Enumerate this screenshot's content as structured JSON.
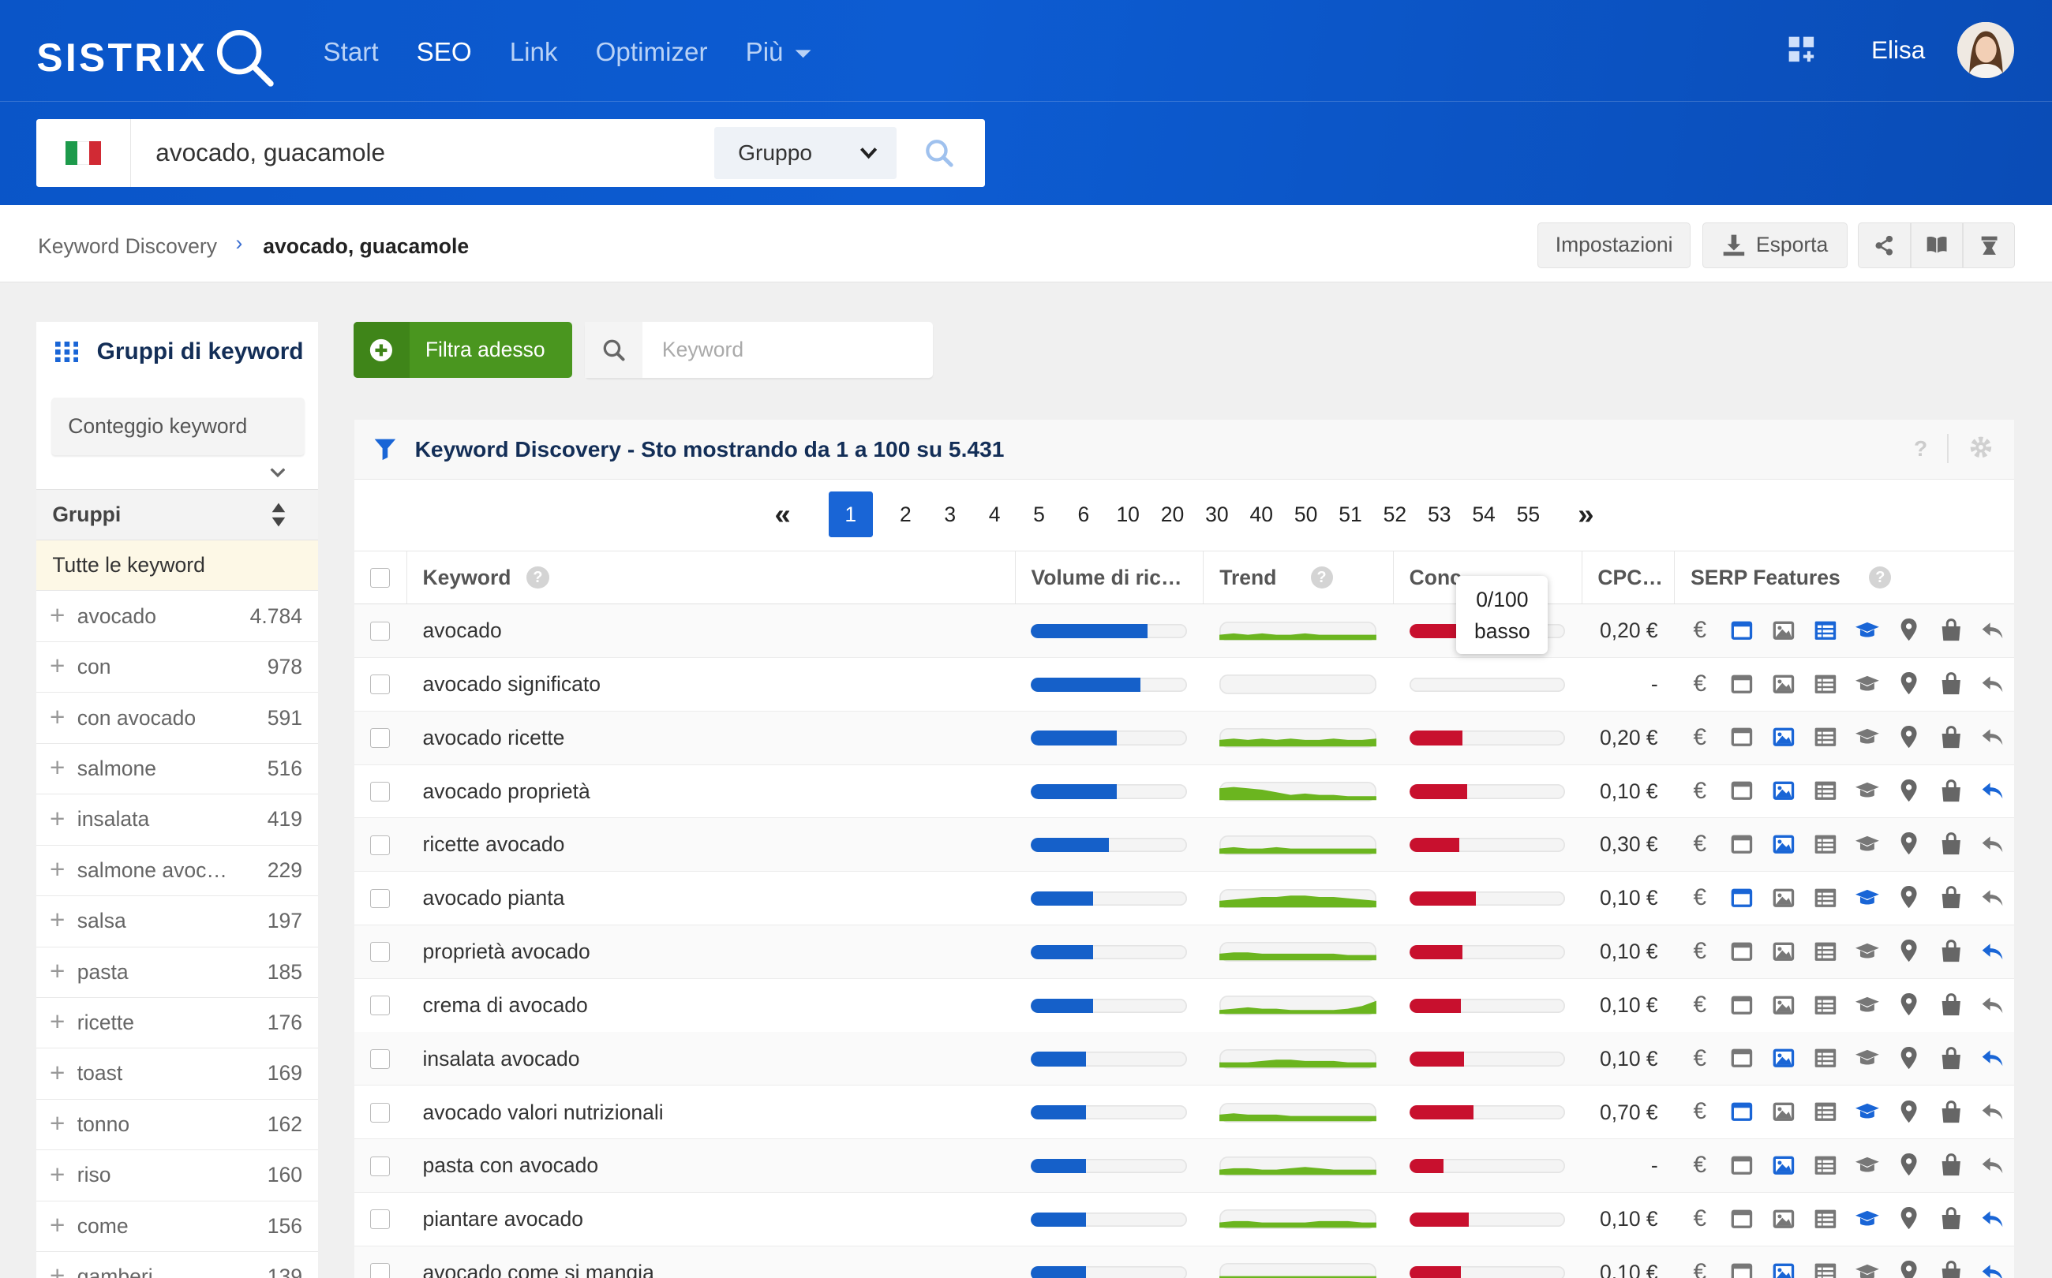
{
  "header": {
    "logo": "SISTRIX",
    "nav": [
      {
        "label": "Start",
        "active": false
      },
      {
        "label": "SEO",
        "active": true
      },
      {
        "label": "Link",
        "active": false
      },
      {
        "label": "Optimizer",
        "active": false
      },
      {
        "label": "Più",
        "active": false
      }
    ],
    "user_name": "Elisa",
    "colors": {
      "brand": "#0d5cd2",
      "accent_green": "#4a961f",
      "bar_blue": "#1560c9",
      "bar_red": "#c8102e",
      "trend_green": "#6bb51f"
    }
  },
  "search": {
    "value": "avocado, guacamole",
    "country_flag": "IT",
    "mode_label": "Gruppo"
  },
  "breadcrumb": {
    "root": "Keyword Discovery",
    "current": "avocado, guacamole"
  },
  "toolbar": {
    "settings_label": "Impostazioni",
    "export_label": "Esporta"
  },
  "sidebar": {
    "title": "Gruppi di keyword",
    "count_button": "Conteggio keyword",
    "groups_header": "Gruppi",
    "all_label": "Tutte le keyword",
    "groups": [
      {
        "name": "avocado",
        "count": "4.784"
      },
      {
        "name": "con",
        "count": "978"
      },
      {
        "name": "con avocado",
        "count": "591"
      },
      {
        "name": "salmone",
        "count": "516"
      },
      {
        "name": "insalata",
        "count": "419"
      },
      {
        "name": "salmone avoc…",
        "count": "229"
      },
      {
        "name": "salsa",
        "count": "197"
      },
      {
        "name": "pasta",
        "count": "185"
      },
      {
        "name": "ricette",
        "count": "176"
      },
      {
        "name": "toast",
        "count": "169"
      },
      {
        "name": "tonno",
        "count": "162"
      },
      {
        "name": "riso",
        "count": "160"
      },
      {
        "name": "come",
        "count": "156"
      },
      {
        "name": "gamberi",
        "count": "139"
      }
    ]
  },
  "filter": {
    "button_label": "Filtra adesso",
    "keyword_placeholder": "Keyword"
  },
  "table": {
    "title": "Keyword Discovery - Sto mostrando da 1 a 100 su 5.431",
    "pages": [
      "1",
      "2",
      "3",
      "4",
      "5",
      "6",
      "10",
      "20",
      "30",
      "40",
      "50",
      "51",
      "52",
      "53",
      "54",
      "55"
    ],
    "current_page": "1",
    "columns": {
      "keyword": "Keyword",
      "volume": "Volume di ric…",
      "trend": "Trend",
      "competition": "Conc",
      "cpc": "CPC…",
      "serp": "SERP Features"
    },
    "tooltip": {
      "line1": "0/100",
      "line2": "basso"
    },
    "rows": [
      {
        "keyword": "avocado",
        "volume": 0.75,
        "competition": 0.3,
        "cpc": "0,20 €",
        "trend": [
          4,
          5,
          4,
          5,
          4,
          4,
          5,
          4,
          4,
          4,
          4,
          4
        ],
        "serp_active": [
          1,
          0,
          1,
          1,
          0,
          0,
          0,
          0
        ]
      },
      {
        "keyword": "avocado significato",
        "volume": 0.7,
        "competition": 0,
        "cpc": "-",
        "trend": [],
        "serp_active": [
          0,
          0,
          0,
          0,
          0,
          0,
          0,
          0
        ]
      },
      {
        "keyword": "avocado ricette",
        "volume": 0.55,
        "competition": 0.34,
        "cpc": "0,20 €",
        "trend": [
          5,
          6,
          5,
          6,
          5,
          6,
          5,
          5,
          6,
          5,
          5,
          6
        ],
        "serp_active": [
          0,
          1,
          0,
          0,
          0,
          0,
          0,
          0
        ]
      },
      {
        "keyword": "avocado proprietà",
        "volume": 0.55,
        "competition": 0.37,
        "cpc": "0,10 €",
        "trend": [
          9,
          10,
          9,
          8,
          6,
          4,
          5,
          4,
          4,
          3,
          3,
          3
        ],
        "serp_active": [
          0,
          1,
          0,
          0,
          0,
          0,
          0,
          1
        ]
      },
      {
        "keyword": "ricette avocado",
        "volume": 0.5,
        "competition": 0.32,
        "cpc": "0,30 €",
        "trend": [
          4,
          5,
          4,
          4,
          5,
          4,
          4,
          4,
          4,
          4,
          4,
          4
        ],
        "serp_active": [
          0,
          1,
          0,
          0,
          0,
          0,
          0,
          0
        ]
      },
      {
        "keyword": "avocado pianta",
        "volume": 0.4,
        "competition": 0.43,
        "cpc": "0,10 €",
        "trend": [
          5,
          6,
          7,
          8,
          8,
          9,
          9,
          8,
          8,
          7,
          6,
          5
        ],
        "serp_active": [
          1,
          0,
          0,
          1,
          0,
          0,
          0,
          0
        ]
      },
      {
        "keyword": "proprietà avocado",
        "volume": 0.4,
        "competition": 0.34,
        "cpc": "0,10 €",
        "trend": [
          5,
          6,
          6,
          5,
          5,
          5,
          5,
          5,
          5,
          4,
          4,
          4
        ],
        "serp_active": [
          0,
          0,
          0,
          0,
          0,
          0,
          0,
          1
        ]
      },
      {
        "keyword": "crema di avocado",
        "volume": 0.4,
        "competition": 0.33,
        "cpc": "0,10 €",
        "trend": [
          3,
          4,
          5,
          4,
          4,
          3,
          3,
          3,
          3,
          4,
          6,
          10
        ],
        "serp_active": [
          0,
          0,
          0,
          0,
          0,
          0,
          0,
          0
        ]
      },
      {
        "keyword": "insalata avocado",
        "volume": 0.35,
        "competition": 0.35,
        "cpc": "0,10 €",
        "trend": [
          4,
          4,
          4,
          5,
          6,
          6,
          5,
          5,
          5,
          4,
          4,
          4
        ],
        "serp_active": [
          0,
          1,
          0,
          0,
          0,
          0,
          0,
          1
        ]
      },
      {
        "keyword": "avocado valori nutrizionali",
        "volume": 0.35,
        "competition": 0.41,
        "cpc": "0,70 €",
        "trend": [
          5,
          6,
          5,
          5,
          5,
          4,
          4,
          4,
          4,
          4,
          4,
          4
        ],
        "serp_active": [
          1,
          0,
          0,
          1,
          0,
          0,
          0,
          0
        ]
      },
      {
        "keyword": "pasta con avocado",
        "volume": 0.35,
        "competition": 0.22,
        "cpc": "-",
        "trend": [
          4,
          5,
          5,
          4,
          4,
          5,
          6,
          5,
          4,
          4,
          4,
          4
        ],
        "serp_active": [
          0,
          1,
          0,
          0,
          0,
          0,
          0,
          0
        ]
      },
      {
        "keyword": "piantare avocado",
        "volume": 0.35,
        "competition": 0.38,
        "cpc": "0,10 €",
        "trend": [
          4,
          5,
          5,
          4,
          4,
          4,
          4,
          5,
          5,
          5,
          4,
          4
        ],
        "serp_active": [
          0,
          0,
          0,
          1,
          0,
          0,
          0,
          1
        ]
      },
      {
        "keyword": "avocado come si mangia",
        "volume": 0.35,
        "competition": 0.33,
        "cpc": "0,10 €",
        "trend": [
          4,
          4,
          4,
          4,
          4,
          4,
          4,
          4,
          4,
          4,
          4,
          4
        ],
        "serp_active": [
          0,
          1,
          0,
          0,
          0,
          0,
          0,
          1
        ]
      }
    ]
  },
  "serp_icons": [
    "euro-icon",
    "adwords-icon",
    "image-icon",
    "news-icon",
    "education-icon",
    "map-pin-icon",
    "shopping-icon",
    "reply-icon"
  ]
}
